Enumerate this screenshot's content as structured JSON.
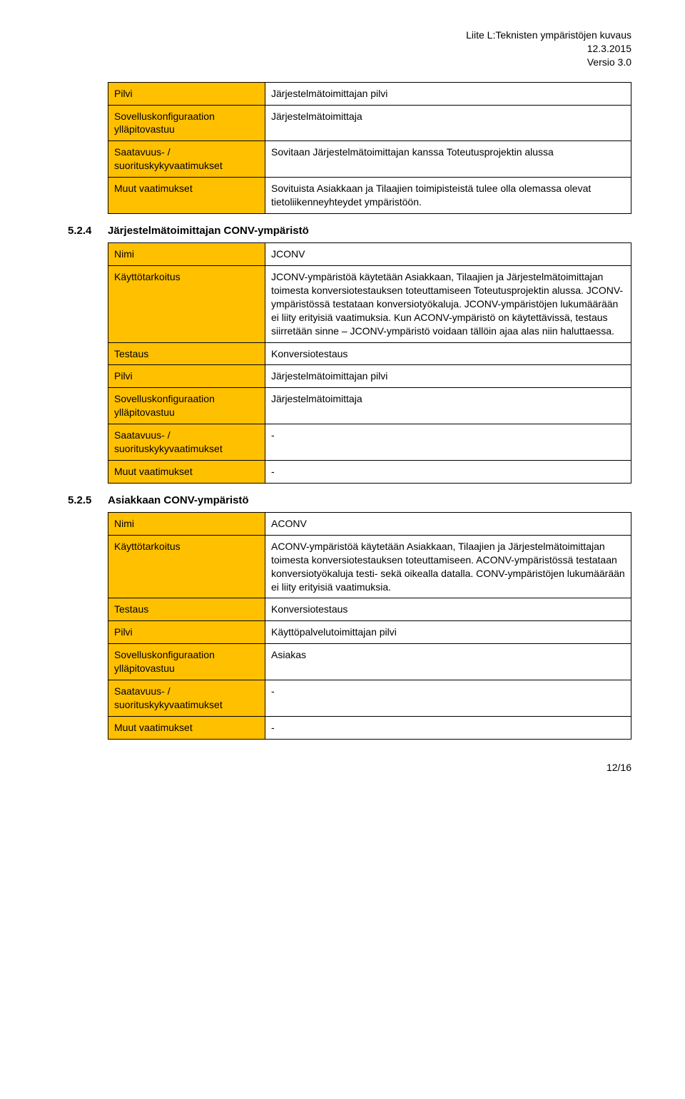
{
  "header": {
    "line1": "Liite L:Teknisten ympäristöjen kuvaus",
    "line2": "12.3.2015",
    "line3": "Versio 3.0"
  },
  "labels": {
    "pilvi": "Pilvi",
    "sovelluskonf": "Sovelluskonfiguraation ylläpitovastuu",
    "saatavuus": "Saatavuus- / suorituskykyvaatimukset",
    "muut": "Muut vaatimukset",
    "nimi": "Nimi",
    "kaytto": "Käyttötarkoitus",
    "testaus": "Testaus"
  },
  "table1": {
    "pilvi": "Järjestelmätoimittajan pilvi",
    "sovelluskonf": "Järjestelmätoimittaja",
    "saatavuus": "Sovitaan Järjestelmätoimittajan kanssa Toteutusprojektin alussa",
    "muut": "Sovituista Asiakkaan ja Tilaajien toimipisteistä tulee olla olemassa olevat tietoliikenneyhteydet ympäristöön."
  },
  "section524": {
    "num": "5.2.4",
    "title": "Järjestelmätoimittajan CONV-ympäristö",
    "nimi": "JCONV",
    "kaytto": "JCONV-ympäristöä käytetään Asiakkaan, Tilaajien ja Järjestelmätoimittajan toimesta konversiotestauksen toteuttamiseen Toteutusprojektin alussa. JCONV-ympäristössä testataan konversiotyökaluja. JCONV-ympäristöjen lukumäärään ei liity erityisiä vaatimuksia. Kun ACONV-ympäristö on käytettävissä, testaus siirretään sinne – JCONV-ympäristö voidaan tällöin ajaa alas niin haluttaessa.",
    "testaus": "Konversiotestaus",
    "pilvi": "Järjestelmätoimittajan pilvi",
    "sovelluskonf": "Järjestelmätoimittaja",
    "saatavuus": "-",
    "muut": "-"
  },
  "section525": {
    "num": "5.2.5",
    "title": "Asiakkaan CONV-ympäristö",
    "nimi": "ACONV",
    "kaytto": "ACONV-ympäristöä käytetään Asiakkaan, Tilaajien ja Järjestelmätoimittajan toimesta konversiotestauksen toteuttamiseen. ACONV-ympäristössä testataan konversiotyökaluja testi- sekä oikealla datalla. CONV-ympäristöjen lukumäärään ei liity erityisiä vaatimuksia.",
    "testaus": "Konversiotestaus",
    "pilvi": "Käyttöpalvelutoimittajan pilvi",
    "sovelluskonf": "Asiakas",
    "saatavuus": "-",
    "muut": "-"
  },
  "footer": "12/16",
  "colors": {
    "label_bg": "#ffc000",
    "border": "#000000",
    "text": "#000000",
    "page_bg": "#ffffff"
  },
  "typography": {
    "body_fontsize_pt": 11,
    "heading_fontsize_pt": 11,
    "font_family": "Arial"
  }
}
